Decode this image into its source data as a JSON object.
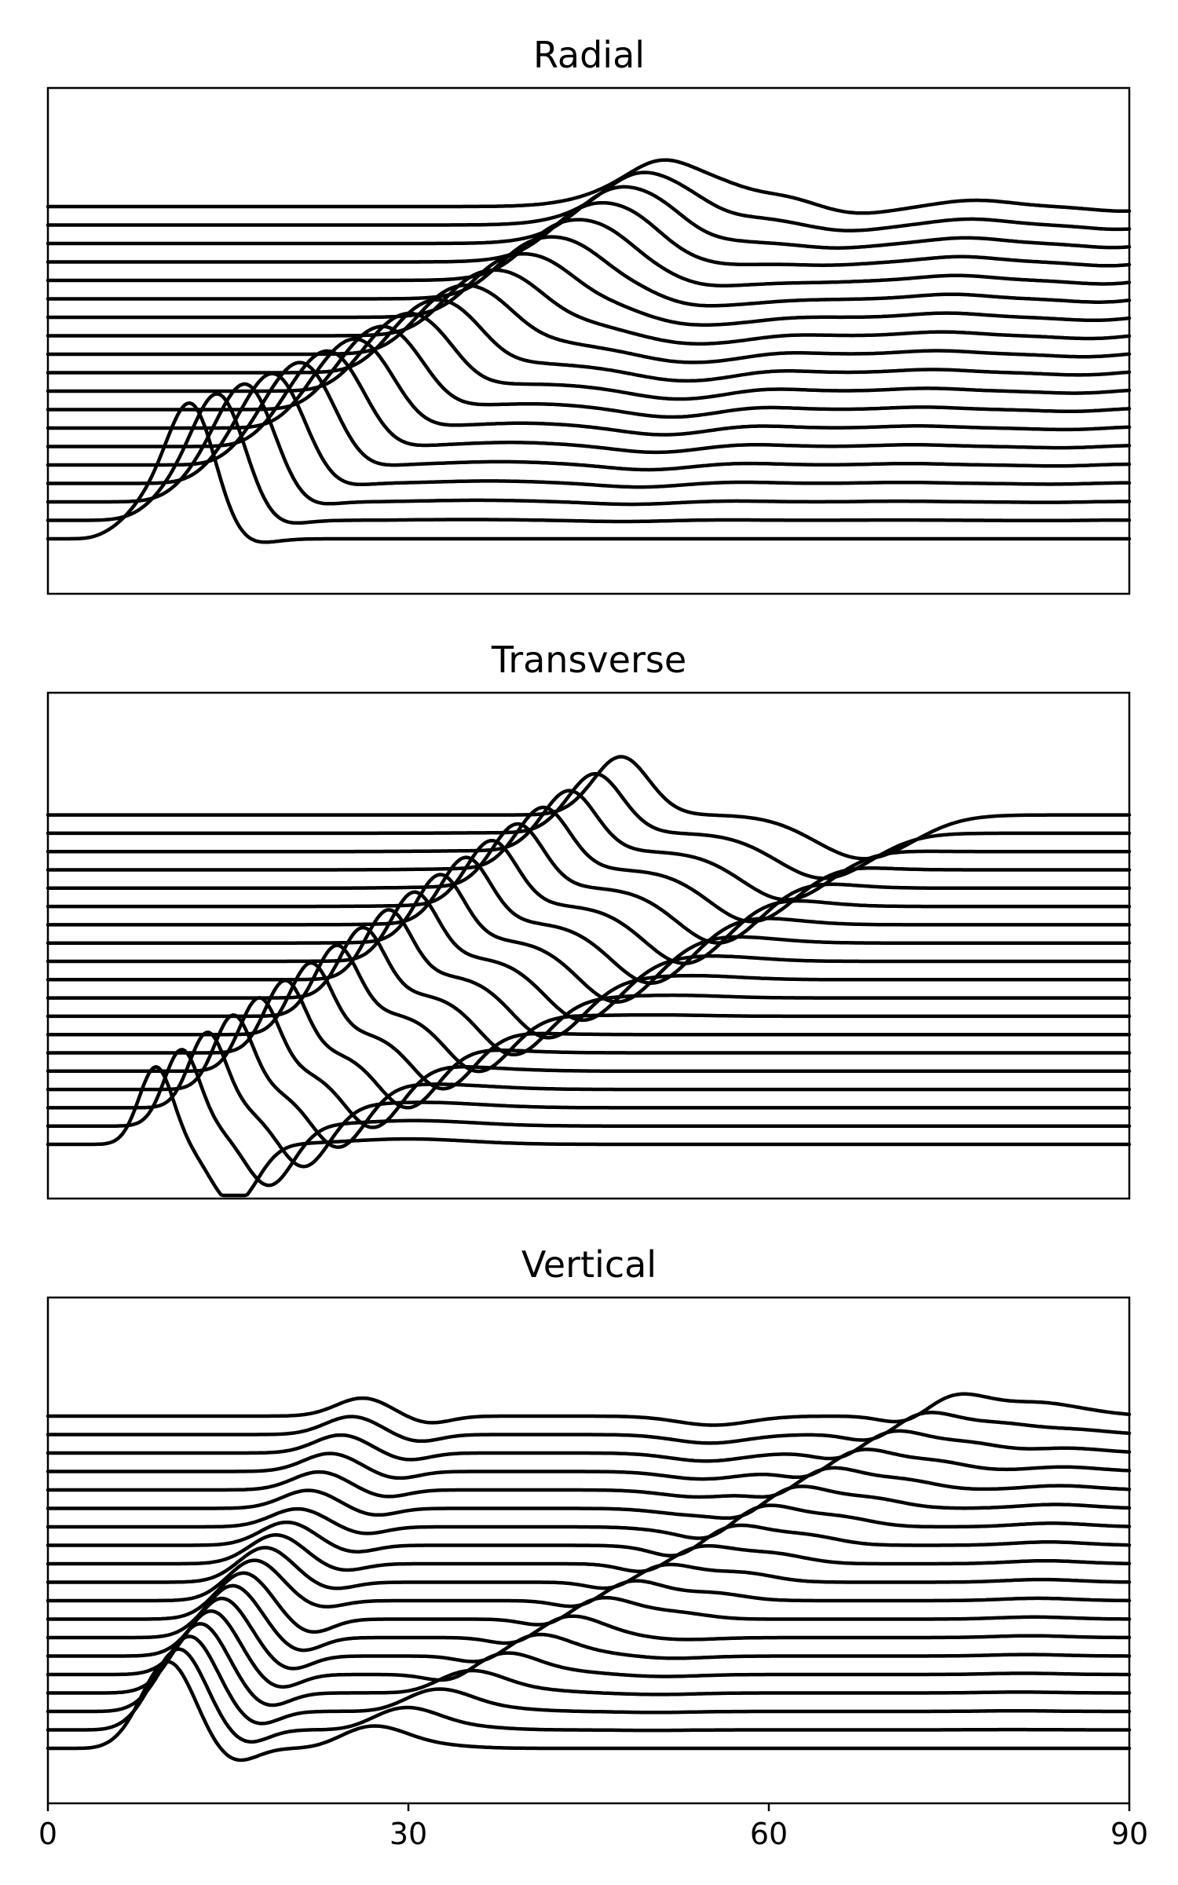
{
  "chart_data": [
    {
      "type": "line",
      "title": "Radial",
      "xlabel": "",
      "ylabel": "",
      "xlim": [
        0,
        90
      ],
      "x_axis_labels_shown": false,
      "n_traces": 19,
      "trace_offset_step": 1,
      "y_ticks_shown": false,
      "grid": false,
      "legend": "none",
      "waveform": {
        "onset_x_first": 3.2,
        "onset_x_step": 0.6,
        "peak_x_first": 12,
        "peak_x_step": 2.35,
        "peak_amplitude_first": 7.0,
        "peak_amplitude_decay": 0.8,
        "coda_x": [
          48,
          56,
          70,
          83,
          88
        ],
        "coda_amplitude": [
          -0.6,
          0.45,
          0.35,
          -0.3,
          0.25
        ]
      },
      "color": "#000000"
    },
    {
      "type": "line",
      "title": "Transverse",
      "xlabel": "",
      "ylabel": "",
      "xlim": [
        0,
        90
      ],
      "x_axis_labels_shown": false,
      "n_traces": 19,
      "trace_offset_step": 1,
      "y_ticks_shown": false,
      "grid": false,
      "legend": "none",
      "waveform": {
        "onset_x_first": 4.0,
        "onset_x_step": 1.0,
        "peak_x_first": 9,
        "peak_x_step": 2.15,
        "peak_amplitude_first": 4.3,
        "peak_amplitude_decay": 0.25,
        "trough_x_first": 15.5,
        "trough_x_step": 2.9,
        "trough_amplitude_first": -3.3,
        "trough_amplitude_growth": 0.0,
        "coda_x": [
          30,
          40
        ],
        "coda_amplitude": [
          0.3,
          0.2
        ]
      },
      "color": "#000000"
    },
    {
      "type": "line",
      "title": "Vertical",
      "xlabel": "",
      "ylabel": "",
      "xlim": [
        0,
        90
      ],
      "xticks": [
        0,
        30,
        60,
        90
      ],
      "n_traces": 19,
      "trace_offset_step": 1,
      "y_ticks_shown": false,
      "grid": false,
      "legend": "none",
      "waveform": {
        "onset_x_first": 3.4,
        "onset_x_step": 0.6,
        "peak_x_first": 10,
        "peak_x_step": 0.9,
        "peak_amplitude_first": 4.8,
        "peak_amplitude_decay": 0.24,
        "second_x_first": 27,
        "second_x_step": 2.7,
        "second_amplitude": 1.4,
        "coda_x": [
          50,
          80
        ],
        "coda_amplitude": [
          -0.5,
          0.3
        ]
      },
      "color": "#000000"
    }
  ]
}
